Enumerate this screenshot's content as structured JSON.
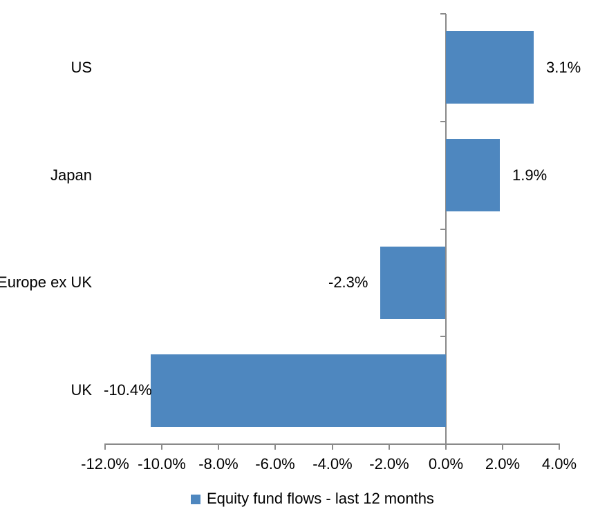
{
  "chart_data": {
    "type": "bar",
    "orientation": "horizontal",
    "title": "",
    "categories": [
      "US",
      "Japan",
      "Europe ex UK",
      "UK"
    ],
    "values": [
      3.1,
      1.9,
      -2.3,
      -10.4
    ],
    "data_labels": [
      "3.1%",
      "1.9%",
      "-2.3%",
      "-10.4%"
    ],
    "series_name": "Equity fund flows - last 12 months",
    "xlim": [
      -12,
      4
    ],
    "x_tick_step": 2,
    "x_tick_labels": [
      "-12.0%",
      "-10.0%",
      "-8.0%",
      "-6.0%",
      "-4.0%",
      "-2.0%",
      "0.0%",
      "2.0%",
      "4.0%"
    ],
    "grid": false,
    "legend_position": "bottom",
    "colors": {
      "bar": "#4e87bf",
      "axis": "#8a8a8a",
      "text": "#000000",
      "background": "#ffffff"
    }
  },
  "legend": {
    "items": [
      {
        "label": "Equity fund flows - last 12 months",
        "swatch_color": "#4e87bf"
      }
    ]
  }
}
